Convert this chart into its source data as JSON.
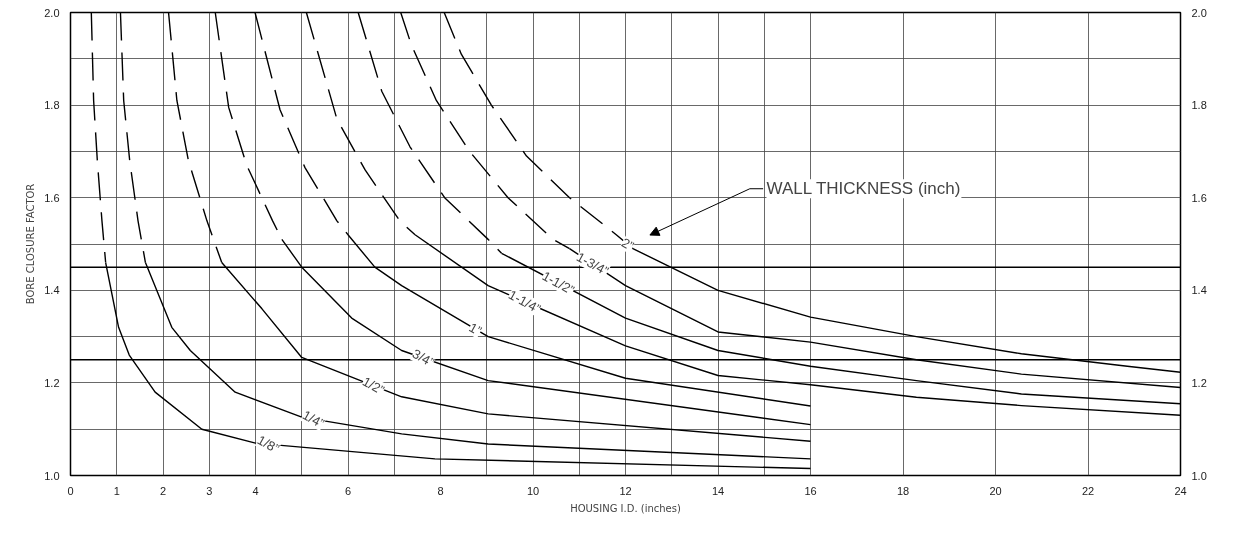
{
  "chart_data": {
    "type": "line",
    "xlabel": "HOUSING I.D. (inches)",
    "ylabel": "BORE CLOSURE FACTOR",
    "xlim": [
      0,
      24
    ],
    "xticks": [
      0,
      1,
      2,
      3,
      4,
      {
        "value": 5,
        "label": null
      },
      6,
      {
        "value": 7,
        "label": null
      },
      8,
      {
        "value": 9,
        "label": null
      },
      10,
      {
        "value": 11,
        "label": null
      },
      12,
      {
        "value": 13,
        "label": null
      },
      14,
      {
        "value": 15,
        "label": null
      },
      16,
      18,
      20,
      22,
      24
    ],
    "ylim": [
      1.0,
      2.0
    ],
    "yticks": [
      {
        "value": 1.0,
        "label": "1.0"
      },
      {
        "value": 1.1,
        "label": null
      },
      1.2,
      {
        "value": 1.3,
        "label": null
      },
      1.4,
      {
        "value": 1.5,
        "label": null
      },
      1.6,
      {
        "value": 1.7,
        "label": null
      },
      1.8,
      {
        "value": 1.9,
        "label": null
      },
      {
        "value": 2.0,
        "label": "2.0"
      }
    ],
    "y2lim": [
      1.0,
      2.0
    ],
    "y2ticks": [
      {
        "value": 1.0,
        "label": "1.0"
      },
      1.2,
      1.4,
      1.6,
      1.8,
      {
        "value": 2.0,
        "label": "2.0"
      }
    ],
    "grid": true,
    "ref_lines": [
      {
        "axis": "y",
        "value": 1.45,
        "color": "#000000"
      },
      {
        "axis": "y",
        "value": 1.25,
        "color": "#000000"
      }
    ],
    "annotations": [
      "WALL THICKNESS (inch)"
    ],
    "series": [
      {
        "color": "#000000",
        "line_style": "dashed",
        "x": [
          0.45,
          0.5,
          0.58,
          0.68,
          0.76
        ],
        "values": [
          2.0,
          1.81,
          1.68,
          1.55,
          1.46
        ]
      },
      {
        "name": "1/8”",
        "color": "#000000",
        "line_style": "solid",
        "x": [
          0.76,
          1.04,
          1.27,
          1.83,
          2.84,
          4.0,
          7.88,
          16
        ],
        "values": [
          1.46,
          1.32,
          1.26,
          1.18,
          1.1,
          1.07,
          1.036,
          1.015
        ]
      },
      {
        "color": "#000000",
        "line_style": "dashed",
        "x": [
          1.08,
          1.15,
          1.28,
          1.46,
          1.62
        ],
        "values": [
          2.0,
          1.81,
          1.68,
          1.55,
          1.46
        ]
      },
      {
        "name": "1/4”",
        "color": "#000000",
        "line_style": "solid",
        "x": [
          1.62,
          2.19,
          2.59,
          3.56,
          5.0,
          7.16,
          9.03,
          16
        ],
        "values": [
          1.46,
          1.32,
          1.27,
          1.18,
          1.126,
          1.09,
          1.068,
          1.036
        ]
      },
      {
        "color": "#000000",
        "line_style": "dashed",
        "x": [
          2.12,
          2.3,
          2.55,
          2.95,
          3.27
        ],
        "values": [
          2.0,
          1.81,
          1.68,
          1.55,
          1.46
        ]
      },
      {
        "name": "1/2”",
        "color": "#000000",
        "line_style": "solid",
        "x": [
          3.27,
          4.14,
          5.0,
          7.16,
          9.03,
          16
        ],
        "values": [
          1.46,
          1.36,
          1.255,
          1.17,
          1.133,
          1.074
        ]
      },
      {
        "color": "#000000",
        "line_style": "dashed",
        "x": [
          3.13,
          3.42,
          3.81,
          4.37,
          4.57
        ],
        "values": [
          2.0,
          1.795,
          1.67,
          1.55,
          1.51
        ]
      },
      {
        "name": "3/4”",
        "color": "#000000",
        "line_style": "solid",
        "x": [
          4.57,
          5.0,
          6.08,
          7.16,
          9.03,
          16
        ],
        "values": [
          1.51,
          1.45,
          1.34,
          1.27,
          1.205,
          1.11
        ]
      },
      {
        "color": "#000000",
        "line_style": "dashed",
        "x": [
          3.99,
          4.53,
          5.07,
          5.76,
          6.0
        ],
        "values": [
          2.0,
          1.79,
          1.665,
          1.55,
          1.52
        ]
      },
      {
        "name": "1”",
        "color": "#000000",
        "line_style": "solid",
        "x": [
          6.0,
          6.58,
          7.16,
          9.03,
          12.0,
          16
        ],
        "values": [
          1.52,
          1.45,
          1.41,
          1.3,
          1.21,
          1.15
        ]
      },
      {
        "color": "#000000",
        "line_style": "dashed",
        "x": [
          5.1,
          5.76,
          6.37,
          7.12,
          7.45
        ],
        "values": [
          2.0,
          1.77,
          1.66,
          1.55,
          1.52
        ]
      },
      {
        "name": "1-1/4”",
        "color": "#000000",
        "line_style": "solid",
        "x": [
          7.45,
          9.03,
          12.0,
          14.0,
          16,
          18.29,
          20.56,
          24
        ],
        "values": [
          1.52,
          1.41,
          1.28,
          1.216,
          1.196,
          1.169,
          1.151,
          1.13
        ]
      },
      {
        "color": "#000000",
        "line_style": "dashed",
        "x": [
          6.22,
          6.73,
          7.34,
          8.09,
          9.03,
          9.32
        ],
        "values": [
          2.0,
          1.83,
          1.71,
          1.6,
          1.51,
          1.48
        ]
      },
      {
        "name": "1-1/2”",
        "color": "#000000",
        "line_style": "solid",
        "x": [
          9.32,
          12.0,
          14.0,
          16,
          18.29,
          20.56,
          24
        ],
        "values": [
          1.48,
          1.34,
          1.27,
          1.236,
          1.205,
          1.176,
          1.155
        ]
      },
      {
        "color": "#000000",
        "line_style": "dashed",
        "x": [
          7.14,
          7.37,
          7.91,
          8.63,
          9.46,
          10.43,
          10.79
        ],
        "values": [
          2.0,
          1.93,
          1.81,
          1.7,
          1.6,
          1.51,
          1.49
        ]
      },
      {
        "name": "1-3/4”",
        "color": "#000000",
        "line_style": "solid",
        "x": [
          10.79,
          12.0,
          14.0,
          16,
          18.29,
          20.56,
          24
        ],
        "values": [
          1.49,
          1.41,
          1.31,
          1.288,
          1.25,
          1.219,
          1.19
        ]
      },
      {
        "color": "#000000",
        "line_style": "dashed",
        "x": [
          8.08,
          8.45,
          9.1,
          9.86,
          10.79,
          11.8,
          12.16
        ],
        "values": [
          2.0,
          1.91,
          1.8,
          1.69,
          1.6,
          1.52,
          1.49
        ]
      },
      {
        "name": "2”",
        "color": "#000000",
        "line_style": "solid",
        "x": [
          12.16,
          14.0,
          16,
          18.29,
          20.56,
          22.85,
          24
        ],
        "values": [
          1.49,
          1.4,
          1.342,
          1.3,
          1.263,
          1.236,
          1.223
        ]
      }
    ]
  }
}
